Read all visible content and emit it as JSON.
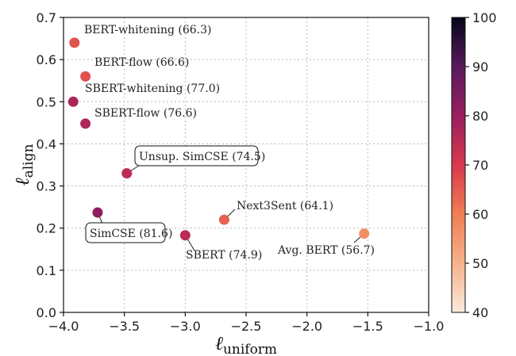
{
  "chart_data": {
    "type": "scatter",
    "xlabel": {
      "main": "ℓ",
      "sub": "uniform"
    },
    "ylabel": {
      "main": "ℓ",
      "sub": "align"
    },
    "xlim": [
      -4.0,
      -1.0
    ],
    "ylim": [
      0.0,
      0.7
    ],
    "xticks": [
      "−4.0",
      "−3.5",
      "−3.0",
      "−2.5",
      "−2.0",
      "−1.5",
      "−1.0"
    ],
    "yticks": [
      "0.0",
      "0.1",
      "0.2",
      "0.3",
      "0.4",
      "0.5",
      "0.6",
      "0.7"
    ],
    "grid": true,
    "colorbar": {
      "min": 40,
      "max": 100,
      "ticks": [
        "40",
        "50",
        "60",
        "70",
        "80",
        "90",
        "100"
      ],
      "colormap": "rocket_r"
    },
    "points": [
      {
        "label": "BERT-whitening (66.3)",
        "x": -3.91,
        "y": 0.64,
        "score": 66.3,
        "boxed": false
      },
      {
        "label": "BERT-flow (66.6)",
        "x": -3.82,
        "y": 0.56,
        "score": 66.6,
        "boxed": false
      },
      {
        "label": "SBERT-whitening (77.0)",
        "x": -3.92,
        "y": 0.5,
        "score": 77.0,
        "boxed": false
      },
      {
        "label": "SBERT-flow (76.6)",
        "x": -3.82,
        "y": 0.448,
        "score": 76.6,
        "boxed": false
      },
      {
        "label": "Unsup. SimCSE (74.5)",
        "x": -3.48,
        "y": 0.33,
        "score": 74.5,
        "boxed": true
      },
      {
        "label": "SimCSE (81.6)",
        "x": -3.72,
        "y": 0.237,
        "score": 81.6,
        "boxed": true
      },
      {
        "label": "SBERT (74.9)",
        "x": -3.0,
        "y": 0.183,
        "score": 74.9,
        "boxed": false
      },
      {
        "label": "Next3Sent (64.1)",
        "x": -2.68,
        "y": 0.22,
        "score": 64.1,
        "boxed": false
      },
      {
        "label": "Avg. BERT (56.7)",
        "x": -1.53,
        "y": 0.187,
        "score": 56.7,
        "boxed": false
      }
    ]
  }
}
